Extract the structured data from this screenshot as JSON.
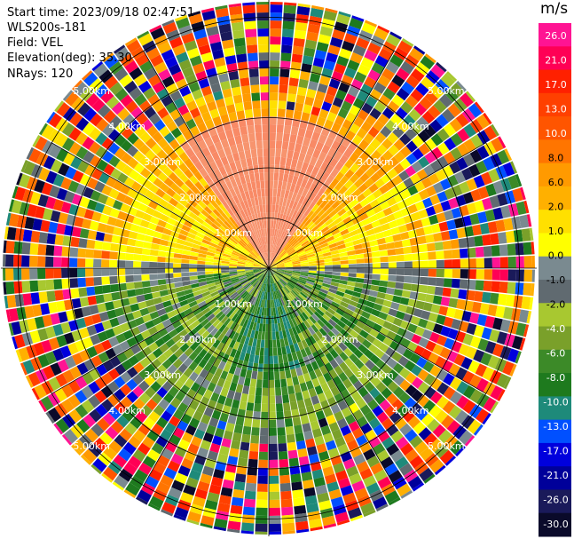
{
  "header": {
    "start_time": "Start time: 2023/09/18 02:47:51",
    "site": "WLS200s-181",
    "field": "Field: VEL",
    "elevation": "Elevation(deg): 35.30",
    "nrays": "NRays: 120"
  },
  "chart_data": {
    "type": "heatmap",
    "projection": "polar-ppi",
    "field": "VEL",
    "nrays": 120,
    "range_rings": [
      "1.00km",
      "2.00km",
      "3.00km",
      "4.00km",
      "5.00km"
    ],
    "colorbar": {
      "unit": "m/s",
      "ticks": [
        "26.0",
        "21.0",
        "17.0",
        "13.0",
        "10.0",
        "8.0",
        "6.0",
        "2.0",
        "1.0",
        "0.0",
        "-1.0",
        "-2.0",
        "-4.0",
        "-6.0",
        "-8.0",
        "-10.0",
        "-13.0",
        "-17.0",
        "-21.0",
        "-26.0",
        "-30.0"
      ],
      "colors": [
        "#ff1493",
        "#ff0055",
        "#ff2000",
        "#ff4000",
        "#ff5500",
        "#ff7500",
        "#ff9a00",
        "#ffb000",
        "#ffe000",
        "#ffff00",
        "#7a8a90",
        "#606a70",
        "#a8c830",
        "#7aa02a",
        "#3c8a28",
        "#1e7a1e",
        "#1e8a7a",
        "#0050ff",
        "#0000dd",
        "#00009a",
        "#1a1a5a",
        "#0a0a2a"
      ]
    },
    "grid": true
  }
}
